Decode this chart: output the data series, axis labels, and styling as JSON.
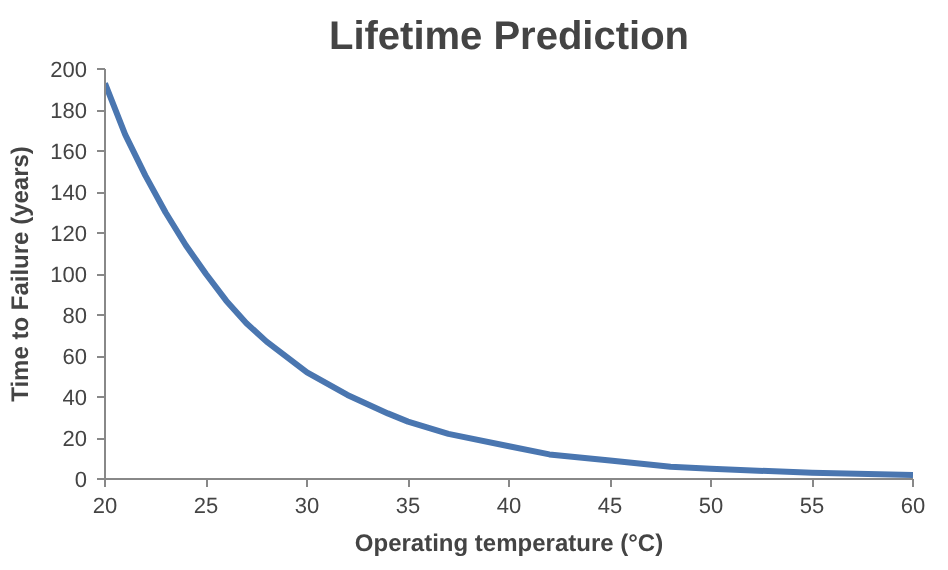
{
  "chart_data": {
    "type": "line",
    "title": "Lifetime Prediction",
    "xlabel": "Operating temperature (°C)",
    "ylabel": "Time to Failure (years)",
    "x": [
      20,
      21,
      22,
      23,
      24,
      25,
      26,
      27,
      28,
      30,
      32,
      34,
      35,
      37,
      40,
      42,
      45,
      48,
      50,
      55,
      60
    ],
    "series": [
      {
        "color": "#4a76b0",
        "values": [
          193,
          168,
          148,
          130,
          114,
          100,
          87,
          76,
          67,
          52,
          41,
          32,
          28,
          22,
          16,
          12,
          9,
          6,
          5,
          3,
          2
        ]
      }
    ],
    "xlim": [
      20,
      60
    ],
    "ylim": [
      0,
      200
    ],
    "xticks": [
      20,
      25,
      30,
      35,
      40,
      45,
      50,
      55,
      60
    ],
    "yticks": [
      0,
      20,
      40,
      60,
      80,
      100,
      120,
      140,
      160,
      180,
      200
    ],
    "grid": false,
    "marker": "none",
    "line_style": "solid"
  }
}
